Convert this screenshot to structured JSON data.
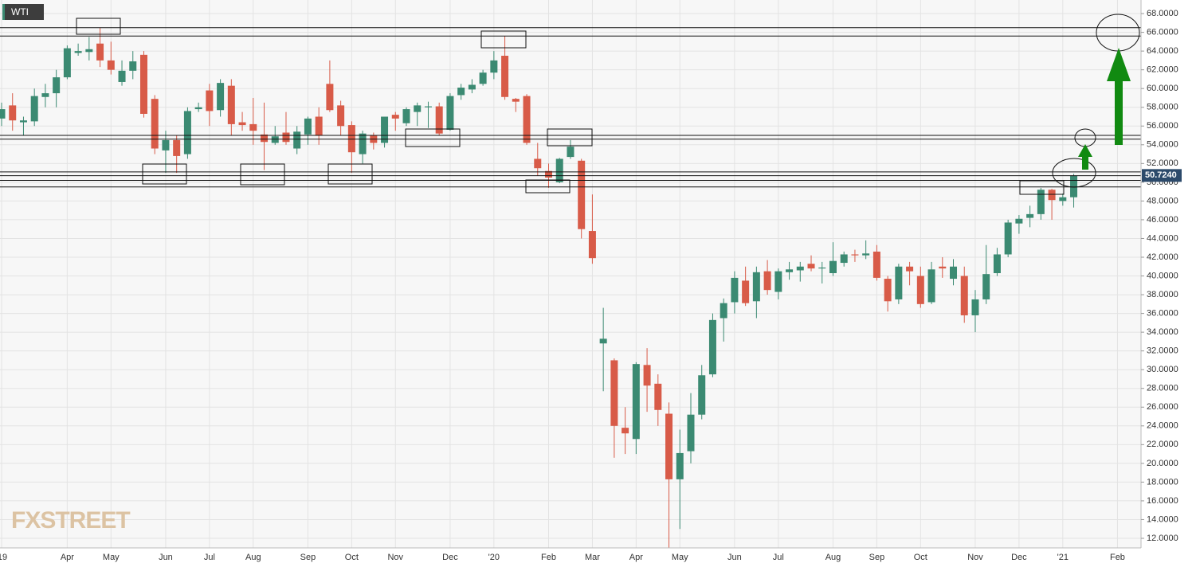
{
  "chart_data": {
    "type": "candlestick",
    "title": "WTI",
    "watermark": "FXSTREET",
    "categories": [
      "'19",
      null,
      null,
      null,
      null,
      null,
      "Apr",
      null,
      null,
      null,
      "May",
      null,
      null,
      null,
      null,
      "Jun",
      null,
      null,
      null,
      "Jul",
      null,
      null,
      null,
      "Aug",
      null,
      null,
      null,
      null,
      "Sep",
      null,
      null,
      null,
      "Oct",
      null,
      null,
      null,
      "Nov",
      null,
      null,
      null,
      null,
      "Dec",
      null,
      null,
      null,
      "'20",
      null,
      null,
      null,
      null,
      "Feb",
      null,
      null,
      null,
      "Mar",
      null,
      null,
      null,
      "Apr",
      null,
      null,
      null,
      "May",
      null,
      null,
      null,
      null,
      "Jun",
      null,
      null,
      null,
      "Jul",
      null,
      null,
      null,
      null,
      "Aug",
      null,
      null,
      null,
      "Sep",
      null,
      null,
      null,
      "Oct",
      null,
      null,
      null,
      null,
      "Nov",
      null,
      null,
      null,
      "Dec",
      null,
      null,
      null,
      "'21",
      null,
      null,
      null,
      null,
      "Feb",
      null,
      null
    ],
    "open": [
      56.8,
      58.2,
      56.4,
      56.5,
      59.1,
      59.5,
      61.2,
      63.8,
      63.9,
      64.8,
      63.0,
      60.7,
      61.9,
      63.6,
      58.9,
      53.4,
      54.5,
      53.0,
      57.8,
      59.8,
      57.7,
      60.3,
      56.4,
      56.2,
      55.1,
      54.2,
      55.3,
      53.6,
      55.1,
      57.0,
      60.5,
      58.2,
      56.1,
      53.0,
      55.0,
      54.2,
      57.2,
      56.3,
      57.5,
      58.0,
      58.1,
      55.6,
      59.3,
      59.9,
      60.5,
      61.7,
      63.5,
      58.9,
      59.2,
      52.5,
      51.2,
      50.0,
      52.7,
      52.3,
      44.8,
      32.8,
      31.0,
      23.8,
      22.6,
      30.5,
      28.5,
      25.3,
      18.3,
      21.3,
      25.2,
      29.5,
      35.5,
      37.2,
      39.5,
      37.3,
      40.5,
      38.3,
      40.4,
      40.6,
      41.3,
      40.8,
      40.3,
      41.4,
      42.3,
      42.2,
      42.6,
      39.7,
      37.5,
      41.0,
      40.0,
      37.2,
      41.0,
      39.7,
      40.0,
      35.8,
      37.5,
      40.3,
      42.3,
      45.6,
      46.2,
      46.6,
      49.2,
      48.0,
      48.4,
      null,
      null,
      null,
      null,
      null,
      null
    ],
    "high": [
      58.5,
      59.5,
      57.0,
      60.0,
      60.5,
      62.0,
      64.6,
      64.8,
      65.5,
      66.5,
      65.0,
      63.0,
      64.0,
      64.0,
      59.3,
      55.5,
      55.0,
      58.0,
      58.5,
      60.5,
      61.0,
      61.0,
      57.5,
      59.0,
      58.5,
      56.0,
      57.5,
      56.0,
      57.0,
      58.0,
      63.0,
      58.7,
      56.5,
      55.5,
      55.3,
      57.0,
      57.5,
      58.0,
      58.5,
      58.6,
      58.5,
      59.5,
      60.5,
      61.0,
      62.0,
      64.0,
      65.6,
      59.0,
      59.4,
      54.2,
      52.0,
      52.6,
      54.5,
      52.5,
      48.7,
      36.6,
      31.2,
      26.0,
      30.8,
      32.3,
      29.5,
      26.5,
      23.6,
      27.5,
      30.5,
      36.0,
      37.6,
      40.5,
      41.0,
      41.0,
      41.7,
      40.8,
      41.5,
      41.5,
      42.2,
      41.5,
      43.6,
      42.6,
      42.8,
      43.8,
      43.3,
      40.0,
      41.3,
      41.5,
      41.0,
      41.5,
      42.0,
      41.8,
      41.0,
      38.5,
      43.3,
      43.0,
      46.0,
      46.5,
      47.5,
      49.4,
      49.3,
      48.8,
      50.9,
      null,
      null,
      null,
      null,
      null,
      null
    ],
    "low": [
      56.0,
      55.5,
      55.0,
      56.0,
      58.0,
      58.0,
      61.0,
      63.5,
      63.0,
      62.3,
      61.5,
      60.3,
      61.0,
      56.9,
      53.0,
      51.0,
      51.0,
      52.5,
      57.5,
      56.0,
      57.0,
      55.0,
      55.5,
      54.0,
      51.3,
      54.0,
      54.0,
      53.0,
      54.0,
      54.0,
      57.5,
      55.0,
      51.0,
      52.0,
      53.5,
      53.7,
      55.5,
      56.0,
      56.0,
      55.8,
      55.0,
      55.5,
      58.8,
      59.5,
      60.3,
      61.0,
      58.8,
      57.5,
      54.0,
      50.7,
      49.4,
      49.9,
      52.5,
      44.0,
      41.3,
      27.7,
      20.6,
      21.0,
      21.0,
      25.5,
      24.0,
      11.0,
      13.0,
      20.0,
      24.7,
      29.2,
      33.0,
      36.0,
      36.8,
      35.5,
      38.0,
      37.5,
      39.6,
      39.4,
      40.5,
      39.2,
      40.0,
      41.0,
      41.5,
      41.8,
      39.5,
      36.2,
      37.0,
      39.0,
      36.6,
      37.0,
      39.8,
      39.0,
      35.0,
      34.0,
      37.0,
      40.0,
      42.0,
      44.5,
      45.2,
      46.0,
      46.0,
      47.5,
      47.3,
      null,
      null,
      null,
      null,
      null,
      null
    ],
    "close": [
      57.8,
      56.6,
      56.6,
      59.2,
      59.5,
      61.2,
      64.3,
      64.0,
      64.2,
      63.0,
      62.0,
      61.9,
      62.9,
      57.3,
      53.6,
      54.5,
      52.8,
      57.6,
      58.0,
      57.6,
      60.6,
      56.2,
      56.1,
      55.5,
      54.3,
      54.9,
      54.3,
      55.4,
      56.8,
      55.0,
      57.7,
      56.0,
      53.2,
      55.2,
      54.2,
      57.0,
      56.8,
      57.8,
      58.2,
      58.1,
      55.2,
      59.2,
      60.1,
      60.4,
      61.7,
      63.0,
      59.1,
      58.6,
      54.2,
      51.5,
      50.5,
      52.5,
      53.8,
      45.0,
      41.9,
      33.3,
      24.0,
      23.2,
      30.6,
      28.3,
      25.7,
      18.3,
      21.1,
      25.2,
      29.4,
      35.3,
      37.1,
      39.8,
      37.1,
      40.4,
      38.5,
      40.5,
      40.7,
      41.0,
      40.8,
      40.9,
      41.6,
      42.3,
      42.2,
      42.4,
      39.8,
      37.3,
      41.0,
      40.5,
      37.0,
      40.7,
      40.8,
      41.0,
      35.8,
      37.5,
      40.2,
      42.3,
      45.7,
      46.1,
      46.6,
      49.2,
      48.1,
      48.4,
      50.72,
      null,
      null,
      null,
      null,
      null,
      null
    ],
    "up_color": "#3b8a72",
    "down_color": "#d85b48",
    "last_price": {
      "value": 50.724,
      "label": "50.7240"
    },
    "levels": [
      66.5,
      65.6,
      55.0,
      54.6,
      51.1,
      50.7,
      50.2,
      49.5
    ],
    "ylim": [
      10.98,
      69.45
    ],
    "yticks": [
      {
        "value": 12,
        "label": "12.0000"
      },
      {
        "value": 14,
        "label": "14.0000"
      },
      {
        "value": 16,
        "label": "16.0000"
      },
      {
        "value": 18,
        "label": "18.0000"
      },
      {
        "value": 20,
        "label": "20.0000"
      },
      {
        "value": 22,
        "label": "22.0000"
      },
      {
        "value": 24,
        "label": "24.0000"
      },
      {
        "value": 26,
        "label": "26.0000"
      },
      {
        "value": 28,
        "label": "28.0000"
      },
      {
        "value": 30,
        "label": "30.0000"
      },
      {
        "value": 32,
        "label": "32.0000"
      },
      {
        "value": 34,
        "label": "34.0000"
      },
      {
        "value": 36,
        "label": "36.0000"
      },
      {
        "value": 38,
        "label": "38.0000"
      },
      {
        "value": 40,
        "label": "40.0000"
      },
      {
        "value": 42,
        "label": "42.0000"
      },
      {
        "value": 44,
        "label": "44.0000"
      },
      {
        "value": 46,
        "label": "46.0000"
      },
      {
        "value": 48,
        "label": "48.0000"
      },
      {
        "value": 50,
        "label": "50.0000"
      },
      {
        "value": 52,
        "label": "52.0000"
      },
      {
        "value": 54,
        "label": "54.0000"
      },
      {
        "value": 56,
        "label": "56.0000"
      },
      {
        "value": 58,
        "label": "58.0000"
      },
      {
        "value": 60,
        "label": "60.0000"
      },
      {
        "value": 62,
        "label": "62.0000"
      },
      {
        "value": 64,
        "label": "64.0000"
      },
      {
        "value": 66,
        "label": "66.0000"
      },
      {
        "value": 68,
        "label": "68.0000"
      }
    ],
    "grid": true
  }
}
